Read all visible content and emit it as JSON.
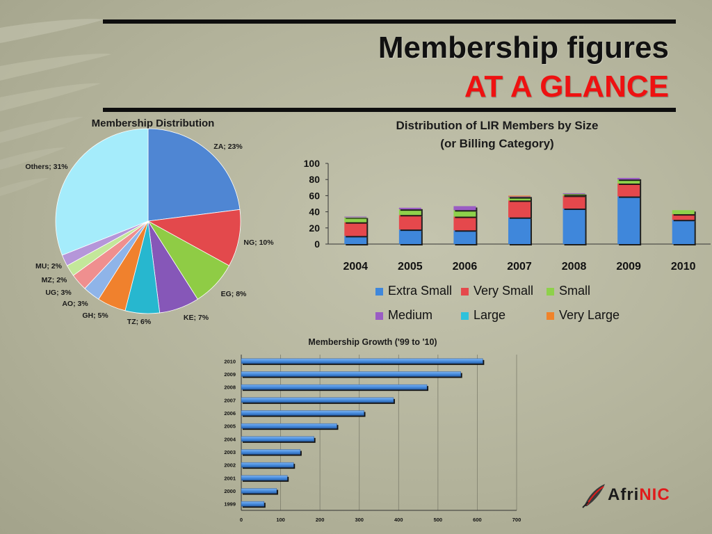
{
  "slide": {
    "title_line1": "Membership figures",
    "title_line2": "AT A GLANCE",
    "logo": {
      "text_part1": "Afri",
      "text_part2": "NIC"
    }
  },
  "colors": {
    "extra_small": "#3f87db",
    "very_small": "#e5484c",
    "small": "#8ed14b",
    "medium": "#9a5cc4",
    "large": "#2fc2dc",
    "very_large": "#f0832a",
    "bar_blue": "#4a8fe0",
    "title_red": "#ee1111"
  },
  "chart_data": [
    {
      "type": "pie",
      "title": "Membership Distribution",
      "slices": [
        {
          "label": "ZA; 23%",
          "value": 23,
          "color": "#4f86d3"
        },
        {
          "label": "NG; 10%",
          "value": 10,
          "color": "#e3494c"
        },
        {
          "label": "EG; 8%",
          "value": 8,
          "color": "#8fcc45"
        },
        {
          "label": "KE; 7%",
          "value": 7,
          "color": "#8657b8"
        },
        {
          "label": "TZ; 6%",
          "value": 6,
          "color": "#27b7cf"
        },
        {
          "label": "GH; 5%",
          "value": 5,
          "color": "#f0812d"
        },
        {
          "label": "AO; 3%",
          "value": 3,
          "color": "#8fb4e8"
        },
        {
          "label": "UG; 3%",
          "value": 3,
          "color": "#ef8f8f"
        },
        {
          "label": "MZ; 2%",
          "value": 2,
          "color": "#c3e79a"
        },
        {
          "label": "MU; 2%",
          "value": 2,
          "color": "#b596d9"
        },
        {
          "label": "Others; 31%",
          "value": 31,
          "color": "#a5ecfb"
        }
      ]
    },
    {
      "type": "bar",
      "stacked": true,
      "title_line1": "Distribution of LIR Members by Size",
      "title_line2": "(or Billing  Category)",
      "categories": [
        "2004",
        "2005",
        "2006",
        "2007",
        "2008",
        "2009",
        "2010"
      ],
      "ylim": [
        0,
        100
      ],
      "yticks": [
        0,
        20,
        40,
        60,
        80,
        100
      ],
      "series": [
        {
          "name": "Extra Small",
          "color": "#3f87db",
          "values": [
            10,
            18,
            17,
            33,
            44,
            59,
            30
          ]
        },
        {
          "name": "Very Small",
          "color": "#e5484c",
          "values": [
            17,
            18,
            17,
            21,
            16,
            16,
            7
          ]
        },
        {
          "name": "Small",
          "color": "#8ed14b",
          "values": [
            6,
            7,
            8,
            4,
            2,
            5,
            5
          ]
        },
        {
          "name": "Medium",
          "color": "#9a5cc4",
          "values": [
            1,
            2,
            5,
            1,
            1,
            2,
            0
          ]
        },
        {
          "name": "Large",
          "color": "#2fc2dc",
          "values": [
            0,
            0,
            0,
            0,
            0,
            0,
            0
          ]
        },
        {
          "name": "Very Large",
          "color": "#f0832a",
          "values": [
            0,
            0,
            0,
            1,
            0,
            0,
            0
          ]
        }
      ],
      "legend_placement": "bottom"
    },
    {
      "type": "bar",
      "orientation": "horizontal",
      "title": "Membership Growth ('99 to '10)",
      "categories": [
        "1999",
        "2000",
        "2001",
        "2002",
        "2003",
        "2004",
        "2005",
        "2006",
        "2007",
        "2008",
        "2009",
        "2010"
      ],
      "values": [
        58,
        90,
        117,
        133,
        150,
        185,
        243,
        312,
        387,
        472,
        558,
        614
      ],
      "xlim": [
        0,
        700
      ],
      "xticks": [
        0,
        100,
        200,
        300,
        400,
        500,
        600,
        700
      ],
      "grid": true,
      "color": "#4a8fe0"
    }
  ]
}
